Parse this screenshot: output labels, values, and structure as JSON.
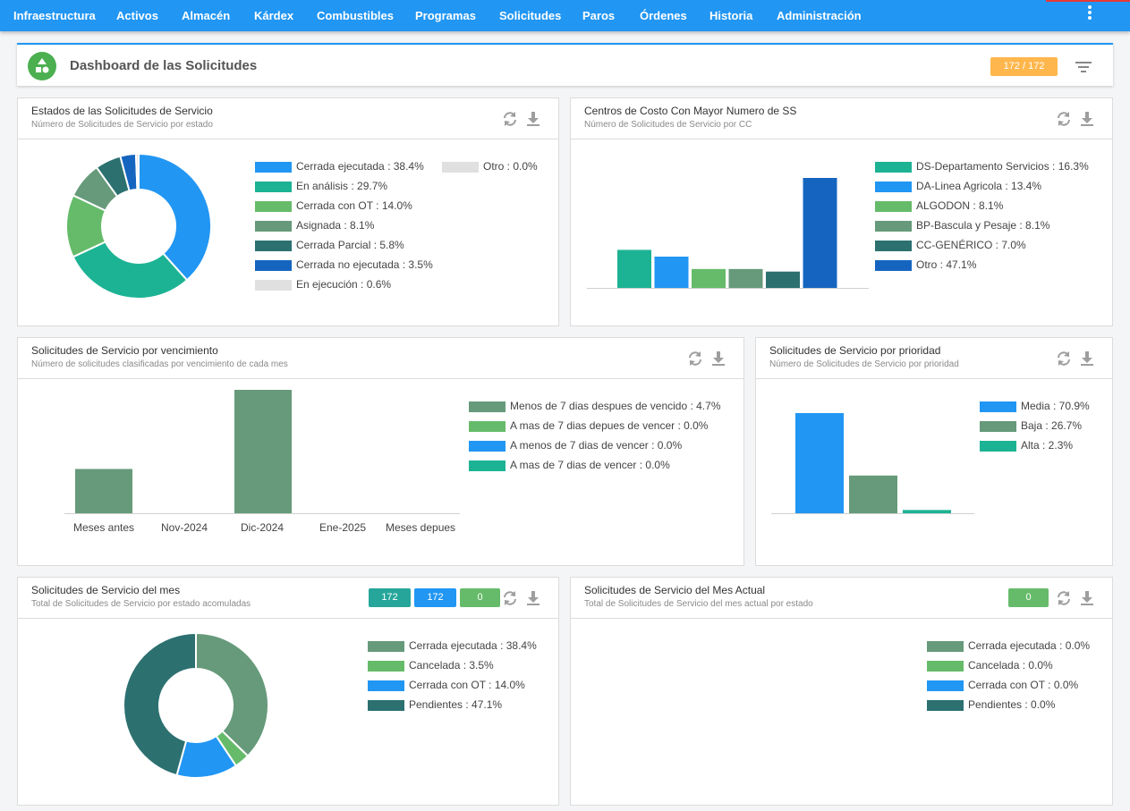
{
  "nav": {
    "items": [
      "Infraestructura",
      "Activos",
      "Almacén",
      "Kárdex",
      "Combustibles",
      "Programas",
      "Solicitudes",
      "Paros",
      "Órdenes",
      "Historia",
      "Administración"
    ]
  },
  "header": {
    "title": "Dashboard de las Solicitudes",
    "badge": "172 / 172"
  },
  "colors": {
    "nav_bg": "#2196f3",
    "blue": "#2196f3",
    "teal": "#1cb394",
    "green": "#66bb6a",
    "grey_green": "#669a7a",
    "dark_teal": "#2c7070",
    "dark_blue": "#1565c0",
    "light_grey": "#e0e0e0",
    "orange_badge": "#ffb74d"
  },
  "panels": {
    "estados": {
      "title": "Estados de las Solicitudes de Servicio",
      "subtitle": "Número de Solicitudes de Servicio por estado",
      "legend_left": [
        {
          "label": "Cerrada ejecutada : 38.4%",
          "color": "#2196f3"
        },
        {
          "label": "En análisis : 29.7%",
          "color": "#1cb394"
        },
        {
          "label": "Cerrada con OT : 14.0%",
          "color": "#66bb6a"
        },
        {
          "label": "Asignada : 8.1%",
          "color": "#669a7a"
        },
        {
          "label": "Cerrada Parcial : 5.8%",
          "color": "#2c7070"
        },
        {
          "label": "Cerrada no ejecutada : 3.5%",
          "color": "#1565c0"
        },
        {
          "label": "En ejecución : 0.6%",
          "color": "#e0e0e0"
        }
      ],
      "legend_right": [
        {
          "label": "Otro : 0.0%",
          "color": "#e0e0e0"
        }
      ]
    },
    "centros": {
      "title": "Centros de Costo Con Mayor Numero de SS",
      "subtitle": "Número de Solicitudes de Servicio por CC",
      "legend": [
        {
          "label": "DS-Departamento Servicios : 16.3%",
          "color": "#1cb394"
        },
        {
          "label": "DA-Linea Agricola : 13.4%",
          "color": "#2196f3"
        },
        {
          "label": "ALGODON : 8.1%",
          "color": "#66bb6a"
        },
        {
          "label": "BP-Bascula y Pesaje : 8.1%",
          "color": "#669a7a"
        },
        {
          "label": "CC-GENÉRICO : 7.0%",
          "color": "#2c7070"
        },
        {
          "label": "Otro : 47.1%",
          "color": "#1565c0"
        }
      ]
    },
    "vencimiento": {
      "title": "Solicitudes de Servicio por vencimiento",
      "subtitle": "Número de solicitudes clasificadas por vencimiento de cada mes",
      "legend": [
        {
          "label": "Menos de 7 dias despues de vencido : 4.7%",
          "color": "#669a7a"
        },
        {
          "label": "A mas de 7 dias depues de vencer : 0.0%",
          "color": "#66bb6a"
        },
        {
          "label": "A menos de 7 dias de vencer : 0.0%",
          "color": "#2196f3"
        },
        {
          "label": "A mas de 7 dias de vencer : 0.0%",
          "color": "#1cb394"
        }
      ],
      "categories": [
        "Meses antes",
        "Nov-2024",
        "Dic-2024",
        "Ene-2025",
        "Meses depues"
      ]
    },
    "prioridad": {
      "title": "Solicitudes de Servicio por prioridad",
      "subtitle": "Número de Solicitudes de Servicio por prioridad",
      "legend": [
        {
          "label": "Media : 70.9%",
          "color": "#2196f3"
        },
        {
          "label": "Baja : 26.7%",
          "color": "#669a7a"
        },
        {
          "label": "Alta : 2.3%",
          "color": "#1cb394"
        }
      ]
    },
    "mes": {
      "title": "Solicitudes de Servicio del mes",
      "subtitle": "Total de Solicitudes de Servicio por estado acomuladas",
      "chips": [
        {
          "value": "172",
          "color": "#26a69a"
        },
        {
          "value": "172",
          "color": "#2196f3"
        },
        {
          "value": "0",
          "color": "#66bb6a"
        }
      ],
      "legend": [
        {
          "label": "Cerrada ejecutada : 38.4%",
          "color": "#669a7a"
        },
        {
          "label": "Cancelada : 3.5%",
          "color": "#66bb6a"
        },
        {
          "label": "Cerrada con OT : 14.0%",
          "color": "#2196f3"
        },
        {
          "label": "Pendientes : 47.1%",
          "color": "#2c7070"
        }
      ]
    },
    "mes_actual": {
      "title": "Solicitudes de Servicio del Mes Actual",
      "subtitle": "Total de Solicitudes de Servicio del mes actual por estado",
      "chip": {
        "value": "0",
        "color": "#66bb6a"
      },
      "legend": [
        {
          "label": "Cerrada ejecutada : 0.0%",
          "color": "#669a7a"
        },
        {
          "label": "Cancelada : 0.0%",
          "color": "#66bb6a"
        },
        {
          "label": "Cerrada con OT : 0.0%",
          "color": "#2196f3"
        },
        {
          "label": "Pendientes : 0.0%",
          "color": "#2c7070"
        }
      ]
    }
  },
  "chart_data": [
    {
      "type": "pie",
      "variant": "donut",
      "labels": [
        "Cerrada ejecutada",
        "En análisis",
        "Cerrada con OT",
        "Asignada",
        "Cerrada Parcial",
        "Cerrada no ejecutada",
        "En ejecución",
        "Otro"
      ],
      "values": [
        38.4,
        29.7,
        14.0,
        8.1,
        5.8,
        3.5,
        0.6,
        0.0
      ],
      "colors": [
        "#2196f3",
        "#1cb394",
        "#66bb6a",
        "#669a7a",
        "#2c7070",
        "#1565c0",
        "#e0e0e0",
        "#e0e0e0"
      ]
    },
    {
      "type": "bar",
      "categories": [
        "DS-Departamento Servicios",
        "DA-Linea Agricola",
        "ALGODON",
        "BP-Bascula y Pesaje",
        "CC-GENÉRICO",
        "Otro"
      ],
      "values": [
        16.3,
        13.4,
        8.1,
        8.1,
        7.0,
        47.1
      ],
      "colors": [
        "#1cb394",
        "#2196f3",
        "#66bb6a",
        "#669a7a",
        "#2c7070",
        "#1565c0"
      ],
      "ylim": [
        0,
        47.1
      ]
    },
    {
      "type": "bar",
      "categories": [
        "Meses antes",
        "Nov-2024",
        "Dic-2024",
        "Ene-2025",
        "Meses depues"
      ],
      "values": [
        4.7,
        0,
        13.1,
        0,
        0
      ],
      "colors": [
        "#669a7a",
        "#669a7a",
        "#669a7a",
        "#669a7a",
        "#669a7a"
      ],
      "ylim": [
        0,
        13.1
      ]
    },
    {
      "type": "bar",
      "categories": [
        "Media",
        "Baja",
        "Alta"
      ],
      "values": [
        70.9,
        26.7,
        2.3
      ],
      "colors": [
        "#2196f3",
        "#669a7a",
        "#1cb394"
      ],
      "ylim": [
        0,
        70.9
      ]
    },
    {
      "type": "pie",
      "variant": "donut",
      "labels": [
        "Cerrada ejecutada",
        "Cancelada",
        "Cerrada con OT",
        "Pendientes"
      ],
      "values": [
        38.4,
        3.5,
        14.0,
        47.1
      ],
      "colors": [
        "#669a7a",
        "#66bb6a",
        "#2196f3",
        "#2c7070"
      ]
    }
  ]
}
